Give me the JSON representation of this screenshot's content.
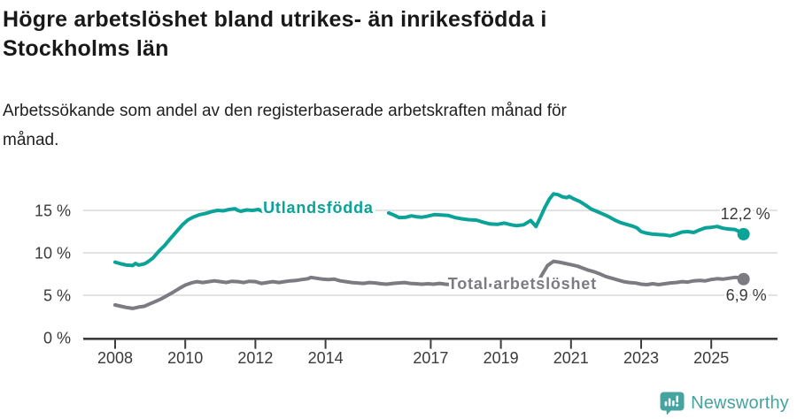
{
  "header": {
    "title_lines": [
      "Högre arbetslöshet bland utrikes- än inrikesfödda i",
      "Stockholms län"
    ],
    "subtitle_lines": [
      "Arbetssökande som andel av den registerbaserade arbetskraften månad för",
      "månad."
    ]
  },
  "footer": {
    "brand": "Newsworthy",
    "logo_icon": "bar-chart-speech-bubble-icon",
    "brand_color": "#45a3a0"
  },
  "colors": {
    "accent_teal": "#0ba298",
    "series_gray": "#7b7b81",
    "text_dark": "#191919",
    "tick_text": "#3a3a3a",
    "gridline": "#d9d9d9",
    "axis": "#3c3c3c"
  },
  "chart_data": {
    "type": "line",
    "title": "Högre arbetslöshet bland utrikes- än inrikesfödda i Stockholms län",
    "subtitle": "Arbetssökande som andel av den registerbaserade arbetskraften månad för månad.",
    "unit": "%",
    "grid": "horizontal",
    "xlim": [
      2007.1,
      2026.6
    ],
    "ylim": [
      0,
      18
    ],
    "x_axis": {
      "ticks": [
        2008,
        2010,
        2012,
        2014,
        2017,
        2019,
        2021,
        2023,
        2025
      ],
      "tick_labels": [
        "2008",
        "2010",
        "2012",
        "2014",
        "2017",
        "2019",
        "2021",
        "2023",
        "2025"
      ]
    },
    "y_axis": {
      "ticks": [
        {
          "value": 0,
          "label": "0 %"
        },
        {
          "value": 5,
          "label": "5 %"
        },
        {
          "value": 10,
          "label": "10 %"
        },
        {
          "value": 15,
          "label": "15 %"
        }
      ]
    },
    "series": [
      {
        "id": "utlandsfodda",
        "name": "Utlandsfödda",
        "color": "#0ba298",
        "inline_label": {
          "text": "Utlandsfödda",
          "at_year": 2012.22,
          "baseline_value": 14.67
        },
        "end": {
          "label": "12,2 %",
          "value": 12.2,
          "dx": -26,
          "dy": -17
        },
        "segments": [
          [
            [
              2008.0,
              8.9
            ],
            [
              2008.17,
              8.7
            ],
            [
              2008.33,
              8.55
            ],
            [
              2008.5,
              8.5
            ],
            [
              2008.58,
              8.75
            ],
            [
              2008.67,
              8.55
            ],
            [
              2008.83,
              8.7
            ],
            [
              2008.92,
              8.9
            ],
            [
              2009.08,
              9.4
            ],
            [
              2009.25,
              10.2
            ],
            [
              2009.42,
              10.9
            ],
            [
              2009.58,
              11.7
            ],
            [
              2009.75,
              12.5
            ],
            [
              2009.92,
              13.3
            ],
            [
              2010.08,
              13.9
            ],
            [
              2010.25,
              14.25
            ],
            [
              2010.42,
              14.5
            ],
            [
              2010.58,
              14.65
            ],
            [
              2010.75,
              14.85
            ],
            [
              2010.92,
              15.0
            ],
            [
              2011.08,
              14.95
            ],
            [
              2011.25,
              15.1
            ],
            [
              2011.42,
              15.2
            ],
            [
              2011.5,
              15.0
            ],
            [
              2011.58,
              14.9
            ],
            [
              2011.75,
              15.05
            ],
            [
              2011.92,
              15.0
            ],
            [
              2012.08,
              15.1
            ],
            [
              2012.2,
              14.9
            ]
          ],
          [
            [
              2015.8,
              14.7
            ],
            [
              2015.95,
              14.45
            ],
            [
              2016.1,
              14.15
            ],
            [
              2016.3,
              14.2
            ],
            [
              2016.45,
              14.35
            ],
            [
              2016.6,
              14.25
            ],
            [
              2016.75,
              14.2
            ],
            [
              2016.9,
              14.3
            ],
            [
              2017.1,
              14.5
            ],
            [
              2017.3,
              14.45
            ],
            [
              2017.5,
              14.4
            ],
            [
              2017.7,
              14.15
            ],
            [
              2017.9,
              14.0
            ],
            [
              2018.1,
              13.9
            ],
            [
              2018.3,
              13.85
            ],
            [
              2018.5,
              13.6
            ],
            [
              2018.7,
              13.4
            ],
            [
              2018.9,
              13.35
            ],
            [
              2019.1,
              13.5
            ],
            [
              2019.3,
              13.3
            ],
            [
              2019.45,
              13.2
            ],
            [
              2019.65,
              13.3
            ],
            [
              2019.85,
              13.8
            ],
            [
              2020.0,
              13.1
            ],
            [
              2020.13,
              14.2
            ],
            [
              2020.25,
              15.3
            ],
            [
              2020.38,
              16.3
            ],
            [
              2020.5,
              16.95
            ],
            [
              2020.63,
              16.85
            ],
            [
              2020.75,
              16.6
            ],
            [
              2020.88,
              16.5
            ],
            [
              2020.95,
              16.65
            ],
            [
              2021.08,
              16.35
            ],
            [
              2021.25,
              16.05
            ],
            [
              2021.42,
              15.6
            ],
            [
              2021.58,
              15.15
            ],
            [
              2021.75,
              14.85
            ],
            [
              2021.92,
              14.55
            ],
            [
              2022.08,
              14.25
            ],
            [
              2022.25,
              13.85
            ],
            [
              2022.42,
              13.55
            ],
            [
              2022.58,
              13.35
            ],
            [
              2022.75,
              13.15
            ],
            [
              2022.88,
              12.95
            ],
            [
              2023.0,
              12.5
            ],
            [
              2023.17,
              12.3
            ],
            [
              2023.33,
              12.2
            ],
            [
              2023.5,
              12.15
            ],
            [
              2023.67,
              12.1
            ],
            [
              2023.83,
              12.0
            ],
            [
              2024.0,
              12.2
            ],
            [
              2024.17,
              12.45
            ],
            [
              2024.33,
              12.5
            ],
            [
              2024.5,
              12.4
            ],
            [
              2024.67,
              12.7
            ],
            [
              2024.83,
              12.95
            ],
            [
              2025.0,
              13.0
            ],
            [
              2025.17,
              13.1
            ],
            [
              2025.33,
              12.9
            ],
            [
              2025.5,
              12.8
            ],
            [
              2025.67,
              12.75
            ],
            [
              2025.83,
              12.45
            ],
            [
              2025.92,
              12.2
            ]
          ]
        ]
      },
      {
        "id": "total-arbetsloshet",
        "name": "Total arbetslöshet",
        "color": "#7b7b81",
        "inline_label": {
          "text": "Total arbetslöshet",
          "at_year": 2017.49,
          "baseline_value": 5.73
        },
        "end": {
          "label": "6,9 %",
          "value": 6.9,
          "dx": -20,
          "dy": 24
        },
        "segments": [
          [
            [
              2008.0,
              3.85
            ],
            [
              2008.17,
              3.7
            ],
            [
              2008.33,
              3.55
            ],
            [
              2008.5,
              3.45
            ],
            [
              2008.67,
              3.6
            ],
            [
              2008.83,
              3.7
            ],
            [
              2009.0,
              4.0
            ],
            [
              2009.17,
              4.3
            ],
            [
              2009.33,
              4.6
            ],
            [
              2009.5,
              5.0
            ],
            [
              2009.67,
              5.4
            ],
            [
              2009.83,
              5.8
            ],
            [
              2010.0,
              6.2
            ],
            [
              2010.17,
              6.45
            ],
            [
              2010.33,
              6.6
            ],
            [
              2010.5,
              6.5
            ],
            [
              2010.67,
              6.6
            ],
            [
              2010.83,
              6.7
            ],
            [
              2011.0,
              6.6
            ],
            [
              2011.17,
              6.5
            ],
            [
              2011.33,
              6.65
            ],
            [
              2011.5,
              6.6
            ],
            [
              2011.67,
              6.5
            ],
            [
              2011.83,
              6.65
            ],
            [
              2012.0,
              6.6
            ],
            [
              2012.17,
              6.4
            ],
            [
              2012.33,
              6.5
            ],
            [
              2012.5,
              6.6
            ],
            [
              2012.67,
              6.5
            ],
            [
              2012.83,
              6.6
            ],
            [
              2013.0,
              6.7
            ],
            [
              2013.17,
              6.75
            ],
            [
              2013.33,
              6.85
            ],
            [
              2013.5,
              6.95
            ],
            [
              2013.58,
              7.1
            ],
            [
              2013.75,
              7.0
            ],
            [
              2013.92,
              6.9
            ],
            [
              2014.08,
              6.85
            ],
            [
              2014.25,
              6.9
            ],
            [
              2014.42,
              6.7
            ],
            [
              2014.58,
              6.6
            ],
            [
              2014.75,
              6.5
            ],
            [
              2014.92,
              6.45
            ],
            [
              2015.08,
              6.4
            ],
            [
              2015.25,
              6.5
            ],
            [
              2015.42,
              6.45
            ],
            [
              2015.58,
              6.35
            ],
            [
              2015.75,
              6.3
            ],
            [
              2015.92,
              6.4
            ],
            [
              2016.08,
              6.45
            ],
            [
              2016.25,
              6.5
            ],
            [
              2016.42,
              6.4
            ],
            [
              2016.58,
              6.35
            ],
            [
              2016.75,
              6.3
            ],
            [
              2016.92,
              6.35
            ],
            [
              2017.08,
              6.3
            ],
            [
              2017.25,
              6.4
            ],
            [
              2017.42,
              6.3
            ],
            [
              2017.58,
              6.25
            ],
            [
              2017.75,
              6.2
            ],
            [
              2017.92,
              6.3
            ],
            [
              2018.08,
              6.25
            ],
            [
              2018.25,
              6.2
            ],
            [
              2018.42,
              6.25
            ],
            [
              2018.58,
              6.2
            ],
            [
              2018.75,
              6.15
            ],
            [
              2018.92,
              6.2
            ],
            [
              2019.08,
              6.25
            ],
            [
              2019.25,
              6.3
            ],
            [
              2019.42,
              6.3
            ],
            [
              2019.58,
              6.35
            ],
            [
              2019.75,
              6.4
            ],
            [
              2019.92,
              6.35
            ],
            [
              2020.05,
              6.45
            ],
            [
              2020.17,
              7.4
            ],
            [
              2020.33,
              8.5
            ],
            [
              2020.5,
              9.0
            ],
            [
              2020.67,
              8.9
            ],
            [
              2020.83,
              8.75
            ],
            [
              2021.0,
              8.6
            ],
            [
              2021.17,
              8.45
            ],
            [
              2021.33,
              8.2
            ],
            [
              2021.5,
              7.95
            ],
            [
              2021.67,
              7.75
            ],
            [
              2021.83,
              7.5
            ],
            [
              2022.0,
              7.2
            ],
            [
              2022.17,
              7.0
            ],
            [
              2022.33,
              6.8
            ],
            [
              2022.5,
              6.6
            ],
            [
              2022.67,
              6.5
            ],
            [
              2022.83,
              6.45
            ],
            [
              2023.0,
              6.3
            ],
            [
              2023.17,
              6.25
            ],
            [
              2023.33,
              6.35
            ],
            [
              2023.5,
              6.25
            ],
            [
              2023.67,
              6.35
            ],
            [
              2023.83,
              6.45
            ],
            [
              2024.0,
              6.5
            ],
            [
              2024.17,
              6.6
            ],
            [
              2024.33,
              6.55
            ],
            [
              2024.5,
              6.7
            ],
            [
              2024.67,
              6.75
            ],
            [
              2024.83,
              6.7
            ],
            [
              2025.0,
              6.85
            ],
            [
              2025.17,
              6.95
            ],
            [
              2025.33,
              6.9
            ],
            [
              2025.5,
              7.0
            ],
            [
              2025.67,
              7.1
            ],
            [
              2025.83,
              7.05
            ],
            [
              2025.92,
              6.9
            ]
          ]
        ]
      }
    ]
  }
}
